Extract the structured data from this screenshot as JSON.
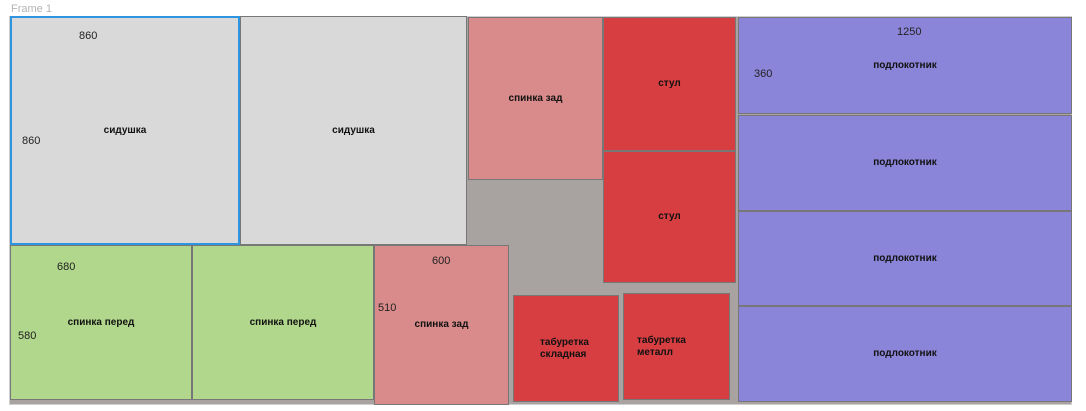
{
  "frame": {
    "label": "Frame 1"
  },
  "pieces": {
    "seat1": {
      "name": "сидушка",
      "width_label": "860",
      "height_label": "860"
    },
    "seat2": {
      "name": "сидушка"
    },
    "front1": {
      "name": "спинка перед",
      "width_label": "680",
      "height_label": "580"
    },
    "front2": {
      "name": "спинка перед"
    },
    "back1": {
      "name": "спинка зад"
    },
    "back2": {
      "name": "спинка зад",
      "width_label": "600",
      "height_label": "510"
    },
    "chair1": {
      "name": "стул"
    },
    "chair2": {
      "name": "стул"
    },
    "stool_fold": {
      "name": "табуретка складная"
    },
    "stool_metal": {
      "name": "табуретка металл"
    },
    "arm1": {
      "name": "подлокотник",
      "width_label": "1250",
      "height_label": "360"
    },
    "arm2": {
      "name": "подлокотник"
    },
    "arm3": {
      "name": "подлокотник"
    },
    "arm4": {
      "name": "подлокотник"
    }
  },
  "colors": {
    "seat": "#d9d9d9",
    "front": "#b0d78b",
    "back": "#d98a8a",
    "chair": "#d63e41",
    "armrest": "#8a85d8",
    "selection": "#2f95e0",
    "sheet": "#a8a2a1"
  }
}
